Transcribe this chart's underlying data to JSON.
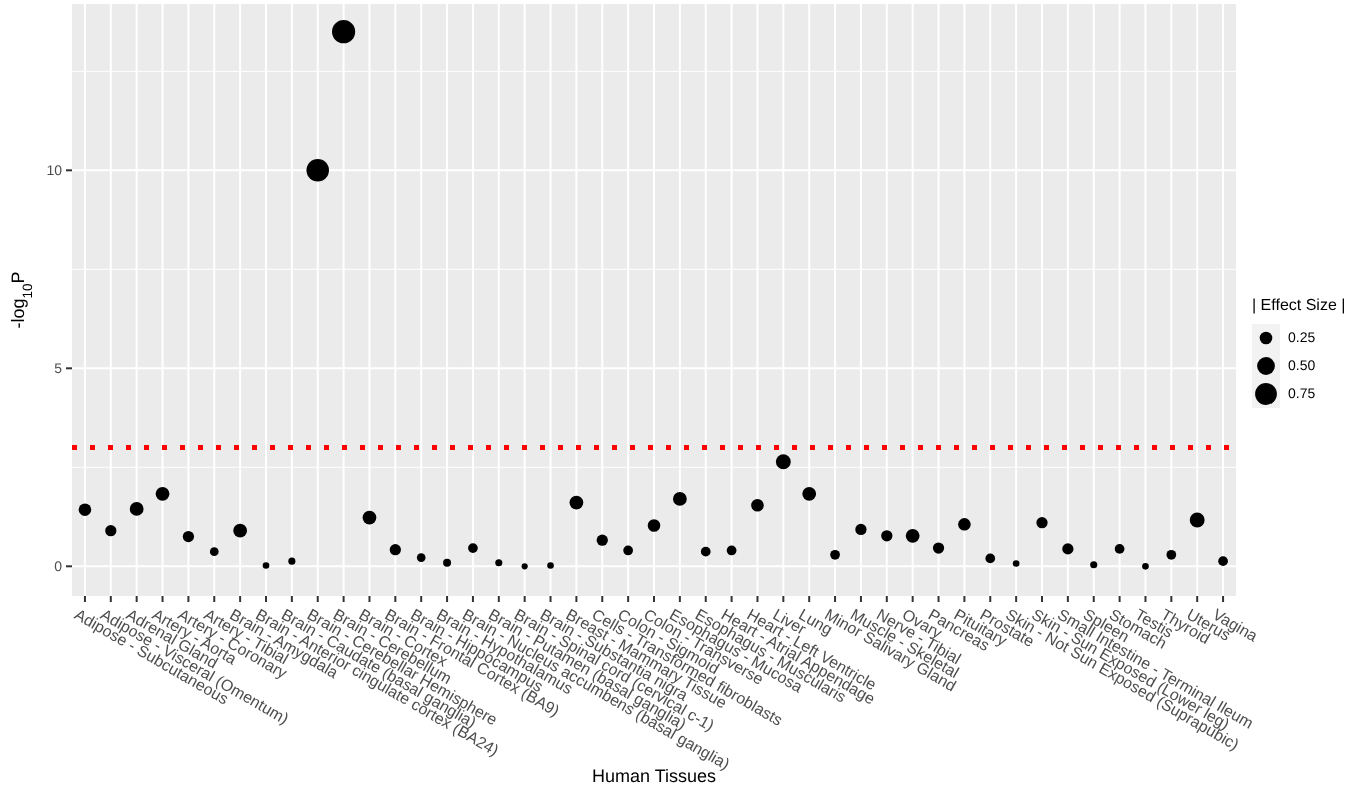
{
  "chart_data": {
    "type": "bubble",
    "xlabel": "Human Tissues",
    "ylabel": "-log$_{10}$P",
    "legend_title": "| Effect Size |",
    "categories": [
      "Adipose - Subcutaneous",
      "Adipose - Visceral (Omentum)",
      "Adrenal Gland",
      "Artery - Aorta",
      "Artery - Coronary",
      "Artery - Tibial",
      "Brain - Amygdala",
      "Brain - Anterior cingulate cortex (BA24)",
      "Brain - Caudate (basal ganglia)",
      "Brain - Cerebellar Hemisphere",
      "Brain - Cerebellum",
      "Brain - Cortex",
      "Brain - Frontal Cortex (BA9)",
      "Brain - Hippocampus",
      "Brain - Hypothalamus",
      "Brain - Nucleus accumbens (basal ganglia)",
      "Brain - Putamen (basal ganglia)",
      "Brain - Spinal cord (cervical c-1)",
      "Brain - Substantia nigra",
      "Breast - Mammary Tissue",
      "Cells - Transformed fibroblasts",
      "Colon - Sigmoid",
      "Colon - Transverse",
      "Esophagus - Mucosa",
      "Esophagus - Muscularis",
      "Heart - Atrial Appendage",
      "Heart - Left Ventricle",
      "Liver",
      "Lung",
      "Minor Salivary Gland",
      "Muscle - Skeletal",
      "Nerve - Tibial",
      "Ovary",
      "Pancreas",
      "Pituitary",
      "Prostate",
      "Skin - Not Sun Exposed (Suprapubic)",
      "Skin - Sun Exposed (Lower leg)",
      "Small Intestine - Terminal Ileum",
      "Spleen",
      "Stomach",
      "Testis",
      "Thyroid",
      "Uterus",
      "Vagina"
    ],
    "values": [
      1.43,
      0.9,
      1.45,
      1.83,
      0.75,
      0.37,
      0.9,
      0.02,
      0.13,
      10.0,
      13.5,
      1.23,
      0.42,
      0.22,
      0.09,
      0.46,
      0.09,
      0.0,
      0.02,
      1.61,
      0.66,
      0.4,
      1.03,
      1.7,
      0.37,
      0.4,
      1.54,
      2.64,
      1.83,
      0.29,
      0.93,
      0.77,
      0.77,
      0.46,
      1.06,
      0.2,
      0.07,
      1.1,
      0.44,
      0.04,
      0.44,
      0.0,
      0.29,
      1.17,
      0.13
    ],
    "sizes": [
      0.25,
      0.2,
      0.3,
      0.3,
      0.2,
      0.12,
      0.3,
      0.07,
      0.08,
      0.8,
      0.85,
      0.3,
      0.2,
      0.12,
      0.1,
      0.15,
      0.08,
      0.06,
      0.07,
      0.3,
      0.2,
      0.15,
      0.25,
      0.3,
      0.15,
      0.15,
      0.25,
      0.35,
      0.3,
      0.15,
      0.2,
      0.2,
      0.3,
      0.2,
      0.25,
      0.15,
      0.07,
      0.2,
      0.2,
      0.08,
      0.15,
      0.07,
      0.15,
      0.35,
      0.15
    ],
    "size_legend": [
      {
        "value": 0.25,
        "label": "0.25"
      },
      {
        "value": 0.5,
        "label": "0.50"
      },
      {
        "value": 0.75,
        "label": "0.75"
      }
    ],
    "color": "#000000",
    "ylim": [
      -0.75,
      14.2
    ],
    "yticks": [
      0,
      5,
      10
    ],
    "ref_lines": [
      {
        "axis": "y",
        "value": 3,
        "color": "#ff0000",
        "line_style": "dotted"
      }
    ],
    "grid": true
  }
}
